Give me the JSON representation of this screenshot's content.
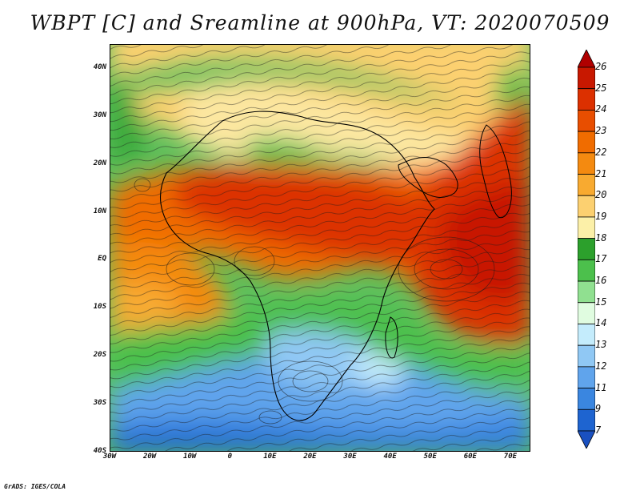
{
  "title": "WBPT [C] and Sreamline at 900hPa, VT: 2020070509",
  "credit": "GrADS: IGES/COLA",
  "map": {
    "lat_labels": [
      "40N",
      "30N",
      "20N",
      "10N",
      "EQ",
      "10S",
      "20S",
      "30S",
      "40S"
    ],
    "lat_values": [
      40,
      30,
      20,
      10,
      0,
      -10,
      -20,
      -30,
      -40
    ],
    "lon_labels": [
      "30W",
      "20W",
      "10W",
      "0",
      "10E",
      "20E",
      "30E",
      "40E",
      "50E",
      "60E",
      "70E"
    ],
    "lon_values": [
      -30,
      -20,
      -10,
      0,
      10,
      20,
      30,
      40,
      50,
      60,
      70
    ],
    "lat_range": [
      -40,
      45
    ],
    "lon_range": [
      -30,
      75
    ]
  },
  "colorbar": {
    "labels": [
      "26",
      "25",
      "24",
      "23",
      "22",
      "21",
      "20",
      "19",
      "18",
      "17",
      "16",
      "15",
      "14",
      "13",
      "12",
      "11",
      "9",
      "7"
    ],
    "colors": [
      "#b00000",
      "#c81800",
      "#dc3000",
      "#e84e00",
      "#f06c00",
      "#f48a10",
      "#f8aa30",
      "#fcd070",
      "#fcf0a8",
      "#2ca02c",
      "#4cc04c",
      "#90e090",
      "#e0fce0",
      "#c4ecfc",
      "#90c8f4",
      "#60a4ec",
      "#3a86e0",
      "#1e64d0",
      "#1a50c0"
    ]
  }
}
